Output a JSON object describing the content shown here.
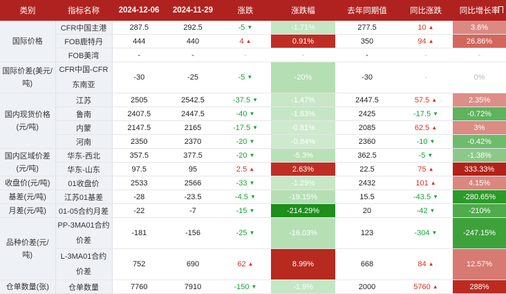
{
  "headers": [
    "类别",
    "指标名称",
    "2024-12-06",
    "2024-11-29",
    "涨跌",
    "涨跌幅",
    "去年同期值",
    "同比涨跌",
    "同比增长率"
  ],
  "categories": {
    "intl_price": "国际价格",
    "intl_spread": "国际价差(美元/吨)",
    "domestic_spot": "国内现货价格(元/吨)",
    "regional_spread": "国内区域价差(元/吨)",
    "close_price": "收盘价(元/吨)",
    "basis": "基差(元/吨)",
    "month_spread": "月差(元/吨)",
    "variety_spread": "品种价差(元/吨)",
    "warehouse": "仓单数量(张)"
  },
  "rows": [
    {
      "name": "CFR中国主港",
      "cur": "287.5",
      "prev": "292.5",
      "chg": "-5",
      "chg_dir": "down",
      "pct": "-1.71%",
      "pct_bg": "#c4e6c3",
      "ly": "277.5",
      "yoy": "10",
      "yoy_dir": "up",
      "yoyp": "3.6%",
      "yoyp_bg": "#db8a83"
    },
    {
      "name": "FOB鹿特丹",
      "cur": "444",
      "prev": "440",
      "chg": "4",
      "chg_dir": "up",
      "pct": "0.91%",
      "pct_bg": "#bf2e24",
      "ly": "350",
      "yoy": "94",
      "yoy_dir": "up",
      "yoyp": "26.86%",
      "yoyp_bg": "#d4665d"
    },
    {
      "name": "FOB美湾",
      "cur": "-",
      "prev": "-",
      "chg": "-",
      "chg_dir": "none",
      "pct": "-",
      "pct_bg": "#ffffff",
      "ly": "-",
      "yoy": "-",
      "yoy_dir": "none",
      "yoyp": "-",
      "yoyp_bg": "#ffffff"
    },
    {
      "name": "CFR中国-CFR东南亚",
      "cur": "-30",
      "prev": "-25",
      "chg": "-5",
      "chg_dir": "down",
      "pct": "-20%",
      "pct_bg": "#b4dfb2",
      "ly": "-30",
      "yoy": "-",
      "yoy_dir": "none",
      "yoyp": "0%",
      "yoyp_bg": "#ffffff"
    },
    {
      "name": "江苏",
      "cur": "2505",
      "prev": "2542.5",
      "chg": "-37.5",
      "chg_dir": "down",
      "pct": "-1.47%",
      "pct_bg": "#c7e7c6",
      "ly": "2447.5",
      "yoy": "57.5",
      "yoy_dir": "up",
      "yoyp": "2.35%",
      "yoyp_bg": "#dc8f88"
    },
    {
      "name": "鲁南",
      "cur": "2407.5",
      "prev": "2447.5",
      "chg": "-40",
      "chg_dir": "down",
      "pct": "-1.63%",
      "pct_bg": "#c5e6c4",
      "ly": "2425",
      "yoy": "-17.5",
      "yoy_dir": "down",
      "yoyp": "-0.72%",
      "yoyp_bg": "#5fb35c"
    },
    {
      "name": "内蒙",
      "cur": "2147.5",
      "prev": "2165",
      "chg": "-17.5",
      "chg_dir": "down",
      "pct": "-0.81%",
      "pct_bg": "#cdeacc",
      "ly": "2085",
      "yoy": "62.5",
      "yoy_dir": "up",
      "yoyp": "3%",
      "yoyp_bg": "#db8c85"
    },
    {
      "name": "河南",
      "cur": "2350",
      "prev": "2370",
      "chg": "-20",
      "chg_dir": "down",
      "pct": "-0.84%",
      "pct_bg": "#cdeacc",
      "ly": "2360",
      "yoy": "-10",
      "yoy_dir": "down",
      "yoyp": "-0.42%",
      "yoyp_bg": "#6fbb6c"
    },
    {
      "name": "华东-西北",
      "cur": "357.5",
      "prev": "377.5",
      "chg": "-20",
      "chg_dir": "down",
      "pct": "-5.3%",
      "pct_bg": "#b9e1b7",
      "ly": "362.5",
      "yoy": "-5",
      "yoy_dir": "down",
      "yoyp": "-1.38%",
      "yoyp_bg": "#8cc989"
    },
    {
      "name": "华东-山东",
      "cur": "97.5",
      "prev": "95",
      "chg": "2.5",
      "chg_dir": "up",
      "pct": "2.63%",
      "pct_bg": "#bf2e24",
      "ly": "22.5",
      "yoy": "75",
      "yoy_dir": "up",
      "yoyp": "333.33%",
      "yoyp_bg": "#b22218"
    },
    {
      "name": "01收盘价",
      "cur": "2533",
      "prev": "2566",
      "chg": "-33",
      "chg_dir": "down",
      "pct": "-1.29%",
      "pct_bg": "#c7e7c6",
      "ly": "2432",
      "yoy": "101",
      "yoy_dir": "up",
      "yoyp": "4.15%",
      "yoyp_bg": "#da8780"
    },
    {
      "name": "江苏01基差",
      "cur": "-28",
      "prev": "-23.5",
      "chg": "-4.5",
      "chg_dir": "down",
      "pct": "-19.15%",
      "pct_bg": "#b5dfb3",
      "ly": "15.5",
      "yoy": "-43.5",
      "yoy_dir": "down",
      "yoyp": "-280.65%",
      "yoyp_bg": "#2c9a29"
    },
    {
      "name": "01-05合约月差",
      "cur": "-22",
      "prev": "-7",
      "chg": "-15",
      "chg_dir": "down",
      "pct": "-214.29%",
      "pct_bg": "#1d8f1a",
      "ly": "20",
      "yoy": "-42",
      "yoy_dir": "down",
      "yoyp": "-210%",
      "yoyp_bg": "#4fab4c"
    },
    {
      "name": "PP-3MA01合约价差",
      "cur": "-181",
      "prev": "-156",
      "chg": "-25",
      "chg_dir": "down",
      "pct": "-16.03%",
      "pct_bg": "#b6e0b4",
      "ly": "123",
      "yoy": "-304",
      "yoy_dir": "down",
      "yoyp": "-247.15%",
      "yoyp_bg": "#3ea23b"
    },
    {
      "name": "L-3MA01合约价差",
      "cur": "752",
      "prev": "690",
      "chg": "62",
      "chg_dir": "up",
      "pct": "8.99%",
      "pct_bg": "#b8291f",
      "ly": "668",
      "yoy": "84",
      "yoy_dir": "up",
      "yoyp": "12.57%",
      "yoyp_bg": "#d77a72"
    },
    {
      "name": "仓单数量",
      "cur": "7760",
      "prev": "7910",
      "chg": "-150",
      "chg_dir": "down",
      "pct": "-1.9%",
      "pct_bg": "#c5e6c4",
      "ly": "2000",
      "yoy": "5760",
      "yoy_dir": "up",
      "yoyp": "288%",
      "yoyp_bg": "#bd2a20"
    }
  ],
  "icons": {
    "up": "triangle-up-icon",
    "down": "triangle-down-icon",
    "filter": "flag-icon"
  },
  "colors": {
    "header_bg": "#b0221f",
    "up_text": "#e0301e",
    "down_text": "#13a535",
    "label_bg": "#eef1f6"
  }
}
